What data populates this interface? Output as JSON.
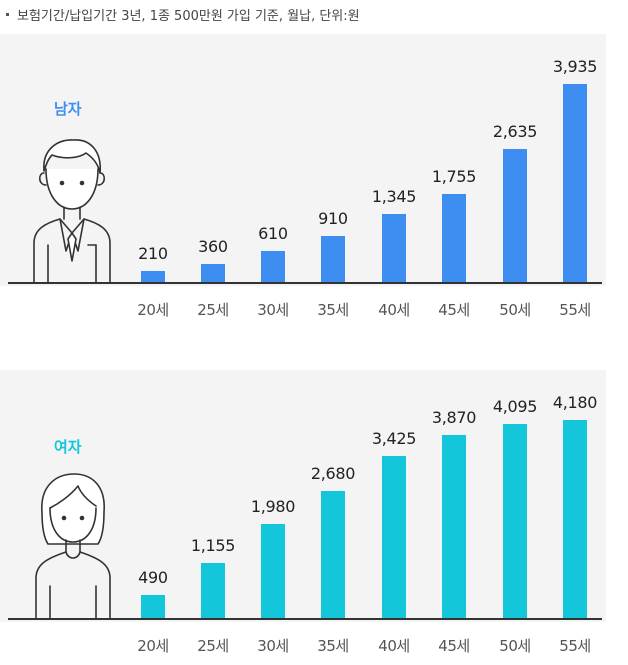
{
  "note": "보험기간/납입기간 3년, 1종 500만원 가입 기준, 월납, 단위:원",
  "chart_data": [
    {
      "type": "bar",
      "title": "남자",
      "categories": [
        "20세",
        "25세",
        "30세",
        "35세",
        "40세",
        "45세",
        "50세",
        "55세"
      ],
      "values": [
        210,
        360,
        610,
        910,
        1345,
        1755,
        2635,
        3935
      ],
      "value_labels": [
        "210",
        "360",
        "610",
        "910",
        "1,345",
        "1,755",
        "2,635",
        "3,935"
      ],
      "color": "#3d8ef0",
      "unit": "원"
    },
    {
      "type": "bar",
      "title": "여자",
      "categories": [
        "20세",
        "25세",
        "30세",
        "35세",
        "40세",
        "45세",
        "50세",
        "55세"
      ],
      "values": [
        490,
        1155,
        1980,
        2680,
        3425,
        3870,
        4095,
        4180
      ],
      "value_labels": [
        "490",
        "1,155",
        "1,980",
        "2,680",
        "3,425",
        "3,870",
        "4,095",
        "4,180"
      ],
      "color": "#13c6da",
      "unit": "원"
    }
  ]
}
